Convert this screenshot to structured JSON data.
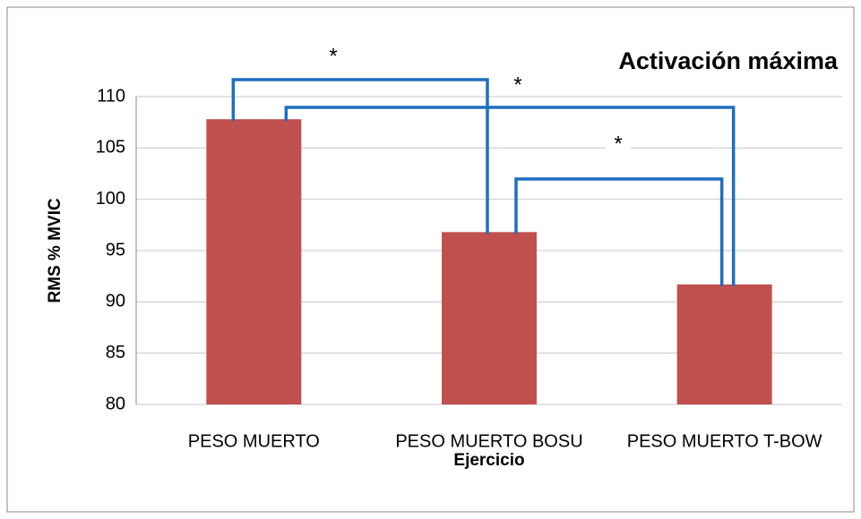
{
  "chart_data": {
    "type": "bar",
    "title": "Activación máxima",
    "categories": [
      "PESO MUERTO",
      "PESO MUERTO BOSU",
      "PESO MUERTO T-BOW"
    ],
    "values": [
      107.8,
      96.8,
      91.7
    ],
    "color": "#c0504d",
    "xlabel": "Ejercicio",
    "ylabel": "RMS % MVIC",
    "ylim": [
      80,
      110
    ],
    "yticks": [
      80,
      85,
      90,
      95,
      100,
      105,
      110
    ],
    "grid": true,
    "annotations": [
      {
        "text": "*",
        "between": [
          0,
          1
        ]
      },
      {
        "text": "*",
        "between": [
          0,
          2
        ]
      },
      {
        "text": "*",
        "between": [
          1,
          2
        ]
      }
    ]
  }
}
